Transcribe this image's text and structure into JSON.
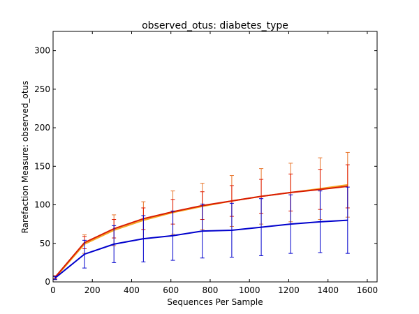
{
  "chart_data": {
    "type": "line",
    "title": "observed_otus: diabetes_type",
    "xlabel": "Sequences Per Sample",
    "ylabel": "Rarefaction Measure: observed_otus",
    "xlim": [
      0,
      1650
    ],
    "ylim": [
      0,
      325
    ],
    "x_ticks": [
      0,
      200,
      400,
      600,
      800,
      1000,
      1200,
      1400,
      1600
    ],
    "y_ticks": [
      0,
      50,
      100,
      150,
      200,
      250,
      300
    ],
    "grid": false,
    "legend": "none",
    "x": [
      10,
      160,
      310,
      460,
      610,
      760,
      910,
      1060,
      1210,
      1360,
      1500
    ],
    "series": [
      {
        "color": "#ff7f0e",
        "stroke": "#f5a623",
        "errcolor": "#e8752a",
        "values": [
          5,
          49,
          67,
          80,
          90,
          98,
          105,
          111,
          116,
          121,
          126
        ],
        "err": [
          2,
          12,
          20,
          24,
          28,
          30,
          33,
          36,
          38,
          40,
          42
        ]
      },
      {
        "color": "#e01b00",
        "stroke": "#d81b00",
        "errcolor": "#e01b00",
        "values": [
          6,
          51,
          69,
          82,
          91,
          99,
          105,
          111,
          116,
          120,
          124
        ],
        "err": [
          2,
          8,
          12,
          14,
          16,
          18,
          20,
          22,
          24,
          26,
          28
        ]
      },
      {
        "color": "#0a14c8",
        "stroke": "#0000cc",
        "errcolor": "#0000cc",
        "values": [
          5,
          36,
          49,
          56,
          60,
          66,
          67,
          71,
          75,
          78,
          80
        ],
        "err": [
          2,
          18,
          24,
          30,
          32,
          35,
          35,
          37,
          38,
          40,
          43
        ]
      }
    ]
  }
}
